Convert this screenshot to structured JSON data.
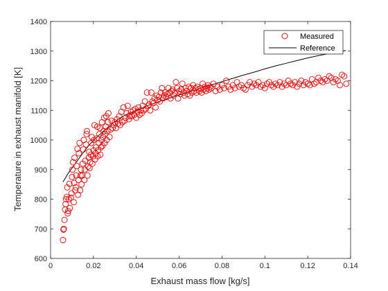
{
  "chart_data": {
    "type": "scatter",
    "xlabel": "Exhaust mass flow [kg/s]",
    "ylabel": "Temperature in exhaust manifold [K]",
    "xlim": [
      0,
      0.14
    ],
    "ylim": [
      600,
      1400
    ],
    "xticks": [
      "0",
      "0.02",
      "0.04",
      "0.06",
      "0.08",
      "0.1",
      "0.12",
      "0.14"
    ],
    "yticks": [
      "600",
      "700",
      "800",
      "900",
      "1000",
      "1100",
      "1200",
      "1300",
      "1400"
    ],
    "grid": false,
    "legend_position": "top-right",
    "series": [
      {
        "name": "Measured",
        "marker": "circle-open",
        "color": "#ff0000",
        "points": [
          [
            0.0058,
            662
          ],
          [
            0.006,
            697
          ],
          [
            0.0062,
            700
          ],
          [
            0.0065,
            730
          ],
          [
            0.0068,
            765
          ],
          [
            0.007,
            783
          ],
          [
            0.0072,
            800
          ],
          [
            0.0075,
            808
          ],
          [
            0.0078,
            840
          ],
          [
            0.008,
            752
          ],
          [
            0.0082,
            760
          ],
          [
            0.0085,
            800
          ],
          [
            0.0088,
            852
          ],
          [
            0.009,
            770
          ],
          [
            0.0095,
            805
          ],
          [
            0.0098,
            820
          ],
          [
            0.01,
            875
          ],
          [
            0.0102,
            900
          ],
          [
            0.0105,
            925
          ],
          [
            0.0108,
            790
          ],
          [
            0.011,
            855
          ],
          [
            0.0112,
            940
          ],
          [
            0.0115,
            830
          ],
          [
            0.0118,
            840
          ],
          [
            0.012,
            880
          ],
          [
            0.0122,
            912
          ],
          [
            0.0125,
            970
          ],
          [
            0.0128,
            815
          ],
          [
            0.013,
            865
          ],
          [
            0.0132,
            955
          ],
          [
            0.0135,
            990
          ],
          [
            0.0138,
            830
          ],
          [
            0.014,
            880
          ],
          [
            0.0142,
            900
          ],
          [
            0.0145,
            850
          ],
          [
            0.0148,
            880
          ],
          [
            0.015,
            920
          ],
          [
            0.0152,
            968
          ],
          [
            0.0155,
            1000
          ],
          [
            0.0158,
            865
          ],
          [
            0.016,
            900
          ],
          [
            0.0162,
            930
          ],
          [
            0.0165,
            985
          ],
          [
            0.0168,
            1020
          ],
          [
            0.017,
            1030
          ],
          [
            0.0172,
            880
          ],
          [
            0.0175,
            910
          ],
          [
            0.0178,
            940
          ],
          [
            0.018,
            960
          ],
          [
            0.0182,
            905
          ],
          [
            0.0185,
            925
          ],
          [
            0.0188,
            950
          ],
          [
            0.019,
            990
          ],
          [
            0.0192,
            1010
          ],
          [
            0.0195,
            920
          ],
          [
            0.0198,
            945
          ],
          [
            0.02,
            965
          ],
          [
            0.0202,
            1000
          ],
          [
            0.0205,
            1050
          ],
          [
            0.0208,
            935
          ],
          [
            0.021,
            955
          ],
          [
            0.0212,
            975
          ],
          [
            0.0215,
            1005
          ],
          [
            0.0218,
            1045
          ],
          [
            0.022,
            945
          ],
          [
            0.0222,
            965
          ],
          [
            0.0225,
            990
          ],
          [
            0.0228,
            1020
          ],
          [
            0.023,
            1040
          ],
          [
            0.0232,
            950
          ],
          [
            0.0235,
            975
          ],
          [
            0.0238,
            1000
          ],
          [
            0.024,
            1060
          ],
          [
            0.0242,
            980
          ],
          [
            0.0245,
            1010
          ],
          [
            0.0248,
            1030
          ],
          [
            0.025,
            1075
          ],
          [
            0.0252,
            990
          ],
          [
            0.0255,
            1020
          ],
          [
            0.0258,
            1045
          ],
          [
            0.026,
            1080
          ],
          [
            0.0262,
            1000
          ],
          [
            0.0265,
            1030
          ],
          [
            0.0268,
            1060
          ],
          [
            0.027,
            1090
          ],
          [
            0.0275,
            1010
          ],
          [
            0.028,
            1035
          ],
          [
            0.0285,
            1065
          ],
          [
            0.029,
            1040
          ],
          [
            0.0295,
            1050
          ],
          [
            0.03,
            1060
          ],
          [
            0.0305,
            1040
          ],
          [
            0.031,
            1070
          ],
          [
            0.0315,
            1055
          ],
          [
            0.032,
            1080
          ],
          [
            0.0325,
            1050
          ],
          [
            0.033,
            1095
          ],
          [
            0.0335,
            1060
          ],
          [
            0.034,
            1110
          ],
          [
            0.0345,
            1065
          ],
          [
            0.035,
            1075
          ],
          [
            0.0355,
            1090
          ],
          [
            0.036,
            1115
          ],
          [
            0.0365,
            1070
          ],
          [
            0.037,
            1080
          ],
          [
            0.0375,
            1095
          ],
          [
            0.038,
            1080
          ],
          [
            0.0385,
            1100
          ],
          [
            0.039,
            1085
          ],
          [
            0.0395,
            1105
          ],
          [
            0.04,
            1075
          ],
          [
            0.0405,
            1095
          ],
          [
            0.041,
            1110
          ],
          [
            0.0415,
            1085
          ],
          [
            0.042,
            1100
          ],
          [
            0.0425,
            1090
          ],
          [
            0.043,
            1115
          ],
          [
            0.0435,
            1100
          ],
          [
            0.044,
            1130
          ],
          [
            0.0445,
            1105
          ],
          [
            0.045,
            1160
          ],
          [
            0.0455,
            1115
          ],
          [
            0.046,
            1120
          ],
          [
            0.0465,
            1100
          ],
          [
            0.047,
            1160
          ],
          [
            0.0475,
            1130
          ],
          [
            0.048,
            1125
          ],
          [
            0.0485,
            1140
          ],
          [
            0.049,
            1110
          ],
          [
            0.0495,
            1150
          ],
          [
            0.05,
            1135
          ],
          [
            0.0505,
            1145
          ],
          [
            0.051,
            1130
          ],
          [
            0.0515,
            1160
          ],
          [
            0.052,
            1175
          ],
          [
            0.0525,
            1140
          ],
          [
            0.053,
            1150
          ],
          [
            0.0535,
            1160
          ],
          [
            0.054,
            1145
          ],
          [
            0.0545,
            1155
          ],
          [
            0.055,
            1175
          ],
          [
            0.0555,
            1160
          ],
          [
            0.056,
            1140
          ],
          [
            0.0565,
            1165
          ],
          [
            0.057,
            1170
          ],
          [
            0.0575,
            1150
          ],
          [
            0.058,
            1160
          ],
          [
            0.0585,
            1195
          ],
          [
            0.059,
            1175
          ],
          [
            0.0595,
            1140
          ],
          [
            0.06,
            1165
          ],
          [
            0.0605,
            1155
          ],
          [
            0.061,
            1170
          ],
          [
            0.0615,
            1190
          ],
          [
            0.062,
            1160
          ],
          [
            0.0625,
            1150
          ],
          [
            0.063,
            1175
          ],
          [
            0.0635,
            1165
          ],
          [
            0.064,
            1155
          ],
          [
            0.0645,
            1180
          ],
          [
            0.065,
            1150
          ],
          [
            0.0655,
            1175
          ],
          [
            0.066,
            1160
          ],
          [
            0.0665,
            1185
          ],
          [
            0.067,
            1165
          ],
          [
            0.0675,
            1175
          ],
          [
            0.068,
            1160
          ],
          [
            0.0685,
            1180
          ],
          [
            0.069,
            1170
          ],
          [
            0.0695,
            1165
          ],
          [
            0.07,
            1175
          ],
          [
            0.0705,
            1160
          ],
          [
            0.071,
            1190
          ],
          [
            0.0715,
            1170
          ],
          [
            0.072,
            1180
          ],
          [
            0.0725,
            1165
          ],
          [
            0.073,
            1175
          ],
          [
            0.0735,
            1185
          ],
          [
            0.074,
            1170
          ],
          [
            0.0745,
            1180
          ],
          [
            0.075,
            1175
          ],
          [
            0.076,
            1190
          ],
          [
            0.077,
            1165
          ],
          [
            0.078,
            1180
          ],
          [
            0.079,
            1170
          ],
          [
            0.08,
            1185
          ],
          [
            0.081,
            1175
          ],
          [
            0.082,
            1200
          ],
          [
            0.083,
            1180
          ],
          [
            0.084,
            1170
          ],
          [
            0.085,
            1185
          ],
          [
            0.086,
            1175
          ],
          [
            0.087,
            1195
          ],
          [
            0.088,
            1180
          ],
          [
            0.089,
            1185
          ],
          [
            0.09,
            1175
          ],
          [
            0.091,
            1170
          ],
          [
            0.092,
            1185
          ],
          [
            0.093,
            1195
          ],
          [
            0.094,
            1180
          ],
          [
            0.095,
            1190
          ],
          [
            0.096,
            1185
          ],
          [
            0.097,
            1195
          ],
          [
            0.098,
            1180
          ],
          [
            0.099,
            1185
          ],
          [
            0.1,
            1175
          ],
          [
            0.101,
            1190
          ],
          [
            0.102,
            1195
          ],
          [
            0.103,
            1185
          ],
          [
            0.104,
            1180
          ],
          [
            0.105,
            1190
          ],
          [
            0.106,
            1185
          ],
          [
            0.107,
            1195
          ],
          [
            0.108,
            1180
          ],
          [
            0.109,
            1190
          ],
          [
            0.11,
            1185
          ],
          [
            0.111,
            1200
          ],
          [
            0.112,
            1190
          ],
          [
            0.113,
            1185
          ],
          [
            0.114,
            1195
          ],
          [
            0.115,
            1180
          ],
          [
            0.116,
            1190
          ],
          [
            0.117,
            1200
          ],
          [
            0.118,
            1185
          ],
          [
            0.119,
            1195
          ],
          [
            0.12,
            1190
          ],
          [
            0.121,
            1185
          ],
          [
            0.122,
            1205
          ],
          [
            0.123,
            1190
          ],
          [
            0.124,
            1195
          ],
          [
            0.125,
            1210
          ],
          [
            0.126,
            1200
          ],
          [
            0.127,
            1195
          ],
          [
            0.128,
            1205
          ],
          [
            0.129,
            1200
          ],
          [
            0.13,
            1215
          ],
          [
            0.131,
            1210
          ],
          [
            0.132,
            1195
          ],
          [
            0.133,
            1205
          ],
          [
            0.134,
            1200
          ],
          [
            0.135,
            1185
          ],
          [
            0.136,
            1220
          ],
          [
            0.137,
            1215
          ],
          [
            0.138,
            1190
          ]
        ]
      },
      {
        "name": "Reference",
        "line": "solid",
        "color": "#000000",
        "points": [
          [
            0.0058,
            858
          ],
          [
            0.008,
            885
          ],
          [
            0.01,
            905
          ],
          [
            0.012,
            925
          ],
          [
            0.014,
            945
          ],
          [
            0.016,
            965
          ],
          [
            0.018,
            983
          ],
          [
            0.02,
            998
          ],
          [
            0.022,
            1012
          ],
          [
            0.024,
            1025
          ],
          [
            0.026,
            1038
          ],
          [
            0.028,
            1050
          ],
          [
            0.03,
            1062
          ],
          [
            0.032,
            1072
          ],
          [
            0.035,
            1085
          ],
          [
            0.04,
            1100
          ],
          [
            0.045,
            1115
          ],
          [
            0.05,
            1128
          ],
          [
            0.055,
            1140
          ],
          [
            0.06,
            1152
          ],
          [
            0.065,
            1163
          ],
          [
            0.07,
            1175
          ],
          [
            0.075,
            1186
          ],
          [
            0.08,
            1197
          ],
          [
            0.085,
            1208
          ],
          [
            0.09,
            1219
          ],
          [
            0.095,
            1229
          ],
          [
            0.1,
            1240
          ],
          [
            0.105,
            1250
          ],
          [
            0.11,
            1259
          ],
          [
            0.115,
            1268
          ],
          [
            0.12,
            1277
          ],
          [
            0.125,
            1285
          ],
          [
            0.13,
            1292
          ],
          [
            0.135,
            1298
          ],
          [
            0.1378,
            1302
          ]
        ]
      }
    ]
  }
}
